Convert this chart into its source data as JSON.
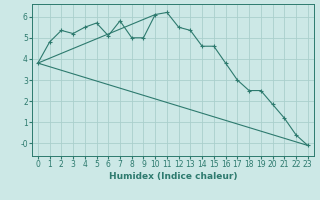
{
  "xlabel": "Humidex (Indice chaleur)",
  "background_color": "#cce8e6",
  "grid_color": "#aacfcc",
  "line_color": "#2d7a6e",
  "xlim": [
    -0.5,
    23.5
  ],
  "ylim": [
    -0.6,
    6.6
  ],
  "yticks": [
    0,
    1,
    2,
    3,
    4,
    5,
    6
  ],
  "ytick_labels": [
    "-0",
    "1",
    "2",
    "3",
    "4",
    "5",
    "6"
  ],
  "xticks": [
    0,
    1,
    2,
    3,
    4,
    5,
    6,
    7,
    8,
    9,
    10,
    11,
    12,
    13,
    14,
    15,
    16,
    17,
    18,
    19,
    20,
    21,
    22,
    23
  ],
  "series1_x": [
    0,
    1,
    2,
    3,
    4,
    5,
    6,
    7,
    8,
    9,
    10,
    11,
    12,
    13,
    14,
    15,
    16,
    17,
    18,
    19,
    20,
    21,
    22,
    23
  ],
  "series1_y": [
    3.8,
    4.8,
    5.35,
    5.2,
    5.5,
    5.7,
    5.1,
    5.8,
    5.0,
    5.0,
    6.1,
    6.2,
    5.5,
    5.35,
    4.6,
    4.6,
    3.8,
    3.0,
    2.5,
    2.5,
    1.85,
    1.2,
    0.4,
    -0.1
  ],
  "series2_x": [
    0,
    23
  ],
  "series2_y": [
    3.8,
    -0.1
  ],
  "series3_x": [
    0,
    10
  ],
  "series3_y": [
    3.8,
    6.1
  ],
  "font_size_label": 6.5,
  "font_size_tick": 5.5
}
